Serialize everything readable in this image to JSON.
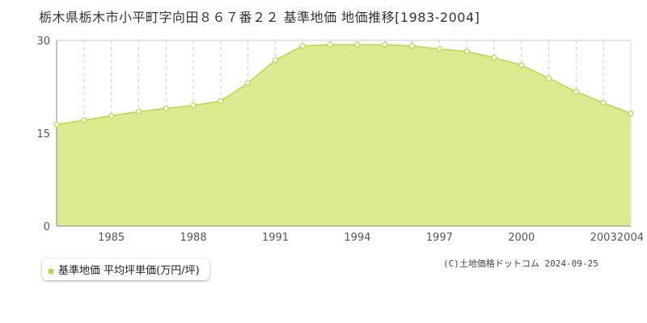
{
  "page": {
    "title": "栃木県栃木市小平町字向田８６７番２２ 基準地価 地価推移[1983-2004]",
    "credit": "(C)土地価格ドットコム 2024-09-25"
  },
  "legend": {
    "label": "基準地価 平均坪単価(万円/坪)"
  },
  "colors": {
    "fill": "#dbeb8f",
    "line": "#b5d84a",
    "marker_fill": "#ffffff",
    "marker_stroke": "#b5d84a",
    "grid": "#cccccc",
    "axis": "#888888"
  },
  "chart_data": {
    "type": "area",
    "title": "",
    "xlabel": "",
    "ylabel": "",
    "xlim": [
      1983,
      2004
    ],
    "ylim": [
      0,
      30
    ],
    "yticks": [
      0,
      15,
      30
    ],
    "xticks": [
      1985,
      1988,
      1991,
      1994,
      1997,
      2000,
      2003,
      2004
    ],
    "grid": true,
    "legend_position": "bottom-left",
    "series": [
      {
        "name": "基準地価 平均坪単価(万円/坪)",
        "x": [
          1983,
          1984,
          1985,
          1986,
          1987,
          1988,
          1989,
          1990,
          1991,
          1992,
          1993,
          1994,
          1995,
          1996,
          1997,
          1998,
          1999,
          2000,
          2001,
          2002,
          2003,
          2004
        ],
        "values": [
          16.4,
          17.1,
          17.8,
          18.5,
          19.0,
          19.5,
          20.2,
          23.1,
          26.8,
          29.1,
          29.3,
          29.3,
          29.3,
          29.1,
          28.6,
          28.2,
          27.2,
          26.0,
          23.9,
          21.7,
          19.9,
          18.2
        ]
      }
    ]
  }
}
